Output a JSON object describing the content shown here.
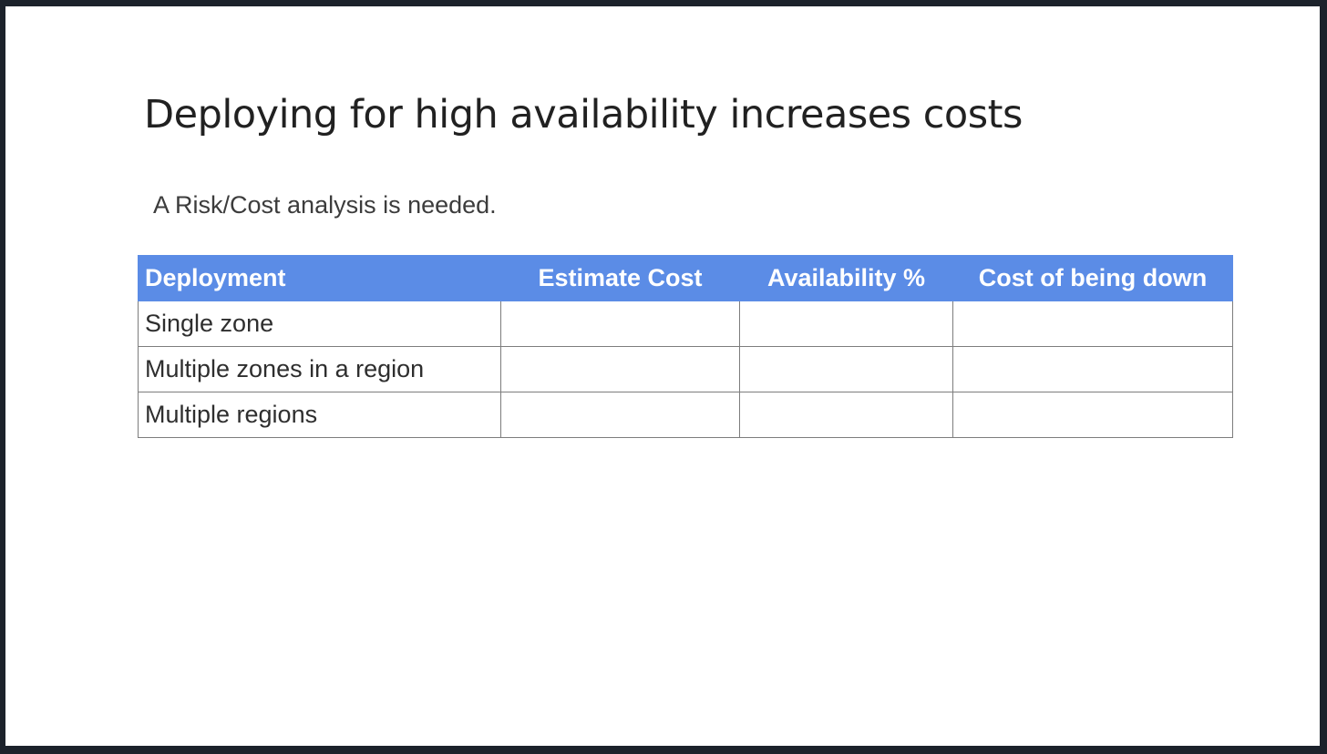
{
  "slide": {
    "title": "Deploying for high availability increases costs",
    "subtitle": "A Risk/Cost analysis is needed."
  },
  "table": {
    "headers": [
      "Deployment",
      "Estimate Cost",
      "Availability %",
      "Cost of being down"
    ],
    "rows": [
      [
        "Single zone",
        "",
        "",
        ""
      ],
      [
        "Multiple zones in a region",
        "",
        "",
        ""
      ],
      [
        "Multiple regions",
        "",
        "",
        ""
      ]
    ]
  },
  "colors": {
    "header_background": "#5b8ce6",
    "header_text": "#ffffff",
    "frame_background": "#1c222b"
  }
}
